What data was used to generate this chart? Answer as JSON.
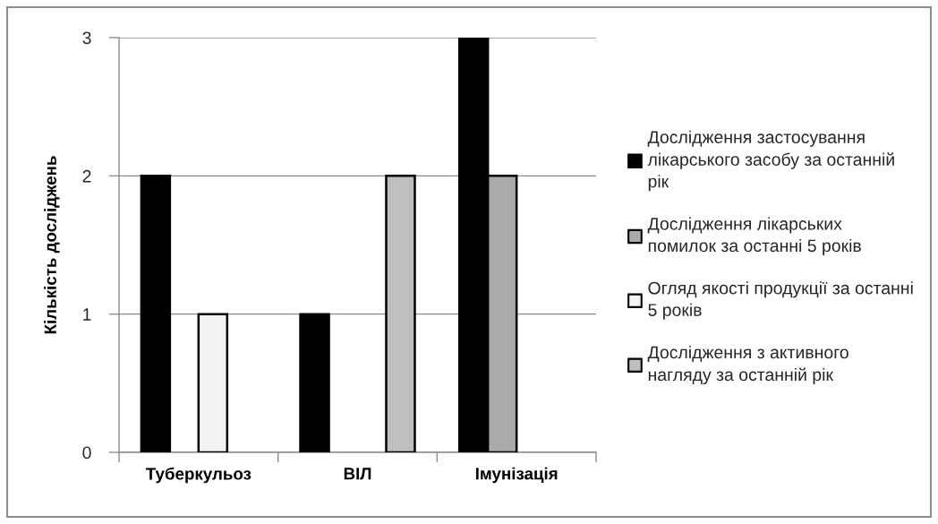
{
  "chart_data": {
    "type": "bar",
    "ylabel": "Кількість досліджень",
    "categories": [
      "Туберкульоз",
      "ВІЛ",
      "Імунізація"
    ],
    "series": [
      {
        "name": "Дослідження застосування лікарського засобу за останній рік",
        "color": "#000000",
        "values": [
          2,
          1,
          3
        ]
      },
      {
        "name": "Дослідження лікарських помилок за останні 5 років",
        "color": "#aaaaaa",
        "values": [
          null,
          null,
          2
        ]
      },
      {
        "name": "Огляд якості продукції за останні 5 років",
        "color": "#f2f2f2",
        "values": [
          1,
          null,
          null
        ]
      },
      {
        "name": "Дослідження з активного нагляду за останній рік",
        "color": "#bfbfbf",
        "values": [
          null,
          2,
          null
        ]
      }
    ],
    "ylim": [
      0,
      3
    ],
    "yticks": [
      0,
      1,
      2,
      3
    ],
    "grid": "y",
    "legend": "right"
  }
}
